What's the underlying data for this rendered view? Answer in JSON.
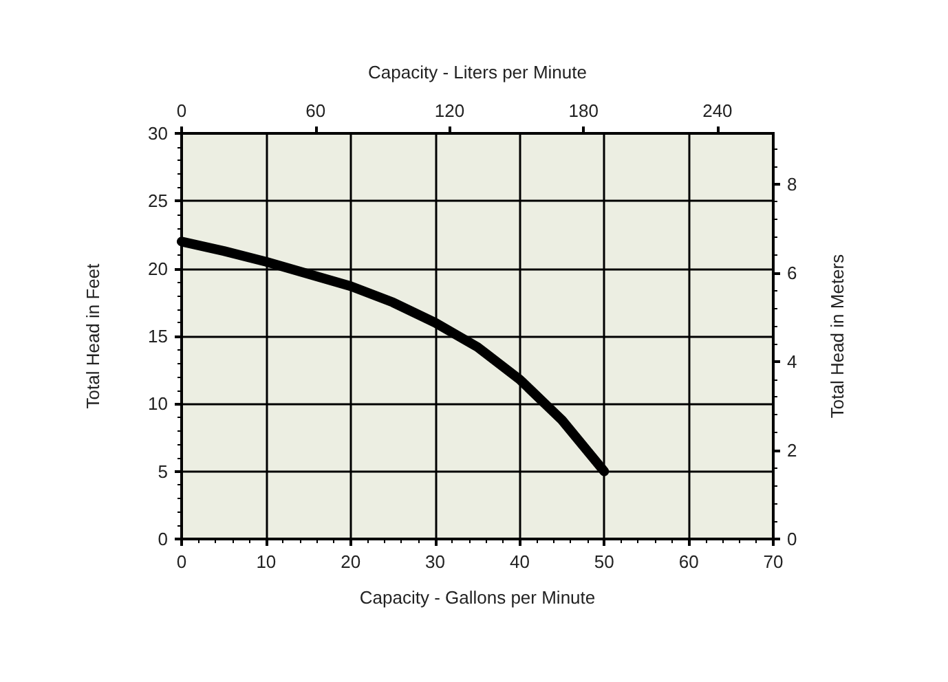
{
  "chart_data": {
    "type": "line",
    "xlabel": "Capacity - Gallons per Minute",
    "x2label": "Capacity - Liters per Minute",
    "ylabel": "Total Head in Feet",
    "y2label": "Total Head in Meters",
    "series": [
      {
        "color": "#000000",
        "x": [
          0,
          5,
          10,
          15,
          20,
          25,
          30,
          35,
          40,
          45,
          50
        ],
        "values": [
          22,
          21.3,
          20.5,
          19.6,
          18.7,
          17.5,
          16,
          14.2,
          11.8,
          8.8,
          5
        ]
      }
    ],
    "xlim": [
      0,
      70
    ],
    "xticks": [
      0,
      10,
      20,
      30,
      40,
      50,
      60,
      70
    ],
    "x2lim": [
      0,
      265
    ],
    "x2ticks": [
      0,
      60,
      120,
      180,
      240
    ],
    "ylim": [
      0,
      30
    ],
    "yticks": [
      0,
      5,
      10,
      15,
      20,
      25,
      30
    ],
    "y2lim": [
      0,
      9.14
    ],
    "y2ticks": [
      0,
      2,
      4,
      6,
      8
    ],
    "grid": true
  }
}
